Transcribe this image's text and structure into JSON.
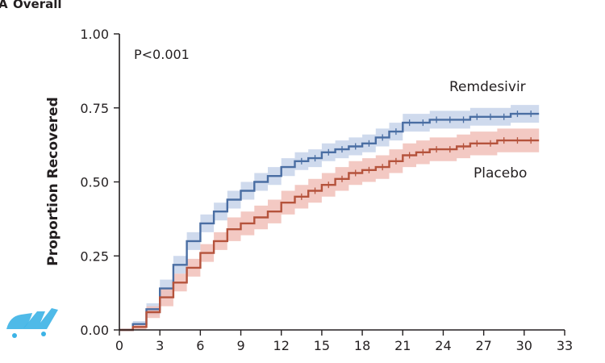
{
  "panel": {
    "letter": "A",
    "title": "Overall"
  },
  "chart_data": {
    "type": "line",
    "title": "Overall",
    "xlabel": "",
    "ylabel": "Proportion Recovered",
    "xlim": [
      0,
      33
    ],
    "ylim": [
      0,
      1
    ],
    "x_ticks": [
      0,
      3,
      6,
      9,
      12,
      15,
      18,
      21,
      24,
      27,
      30,
      33
    ],
    "y_ticks": [
      0,
      0.25,
      0.5,
      0.75,
      1.0
    ],
    "y_tick_labels": [
      "0.00",
      "0.25",
      "0.50",
      "0.75",
      "1.00"
    ],
    "annotation": "P<0.001",
    "step": true,
    "series": [
      {
        "name": "Remdesivir",
        "color": "#4a6ea3",
        "band_color": "#c7d3ea",
        "x": [
          0,
          1,
          2,
          3,
          4,
          5,
          6,
          7,
          8,
          9,
          10,
          11,
          12,
          13,
          14,
          15,
          16,
          17,
          18,
          19,
          20,
          21,
          22,
          23,
          24,
          25,
          26,
          27,
          28,
          29,
          30,
          31
        ],
        "y": [
          0,
          0.02,
          0.07,
          0.14,
          0.22,
          0.3,
          0.36,
          0.4,
          0.44,
          0.47,
          0.5,
          0.52,
          0.55,
          0.57,
          0.58,
          0.6,
          0.61,
          0.62,
          0.63,
          0.65,
          0.67,
          0.7,
          0.7,
          0.71,
          0.71,
          0.71,
          0.72,
          0.72,
          0.72,
          0.73,
          0.73,
          0.73
        ],
        "lower": [
          0,
          0.01,
          0.05,
          0.11,
          0.19,
          0.27,
          0.33,
          0.37,
          0.41,
          0.44,
          0.47,
          0.49,
          0.52,
          0.54,
          0.55,
          0.57,
          0.58,
          0.59,
          0.6,
          0.62,
          0.64,
          0.67,
          0.67,
          0.68,
          0.68,
          0.68,
          0.69,
          0.69,
          0.69,
          0.7,
          0.7,
          0.7
        ],
        "upper": [
          0,
          0.03,
          0.09,
          0.17,
          0.25,
          0.33,
          0.39,
          0.43,
          0.47,
          0.5,
          0.53,
          0.55,
          0.58,
          0.6,
          0.61,
          0.63,
          0.64,
          0.65,
          0.66,
          0.68,
          0.7,
          0.73,
          0.73,
          0.74,
          0.74,
          0.74,
          0.75,
          0.75,
          0.75,
          0.76,
          0.76,
          0.76
        ]
      },
      {
        "name": "Placebo",
        "color": "#b5533c",
        "band_color": "#f1c0b8",
        "x": [
          0,
          1,
          2,
          3,
          4,
          5,
          6,
          7,
          8,
          9,
          10,
          11,
          12,
          13,
          14,
          15,
          16,
          17,
          18,
          19,
          20,
          21,
          22,
          23,
          24,
          25,
          26,
          27,
          28,
          29,
          30,
          31
        ],
        "y": [
          0,
          0.01,
          0.06,
          0.11,
          0.16,
          0.21,
          0.26,
          0.3,
          0.34,
          0.36,
          0.38,
          0.4,
          0.43,
          0.45,
          0.47,
          0.49,
          0.51,
          0.53,
          0.54,
          0.55,
          0.57,
          0.59,
          0.6,
          0.61,
          0.61,
          0.62,
          0.63,
          0.63,
          0.64,
          0.64,
          0.64,
          0.64
        ],
        "lower": [
          0,
          0.0,
          0.04,
          0.08,
          0.13,
          0.18,
          0.23,
          0.27,
          0.3,
          0.32,
          0.34,
          0.36,
          0.39,
          0.41,
          0.43,
          0.45,
          0.47,
          0.49,
          0.5,
          0.51,
          0.53,
          0.55,
          0.56,
          0.57,
          0.57,
          0.58,
          0.59,
          0.59,
          0.6,
          0.6,
          0.6,
          0.6
        ],
        "upper": [
          0,
          0.02,
          0.08,
          0.14,
          0.19,
          0.24,
          0.29,
          0.33,
          0.38,
          0.4,
          0.42,
          0.44,
          0.47,
          0.49,
          0.51,
          0.53,
          0.55,
          0.57,
          0.58,
          0.59,
          0.61,
          0.63,
          0.64,
          0.65,
          0.65,
          0.66,
          0.67,
          0.67,
          0.68,
          0.68,
          0.68,
          0.68
        ]
      }
    ]
  },
  "watermark": {
    "icon": "watermark-logo-icon",
    "color": "#3cb3e6"
  }
}
